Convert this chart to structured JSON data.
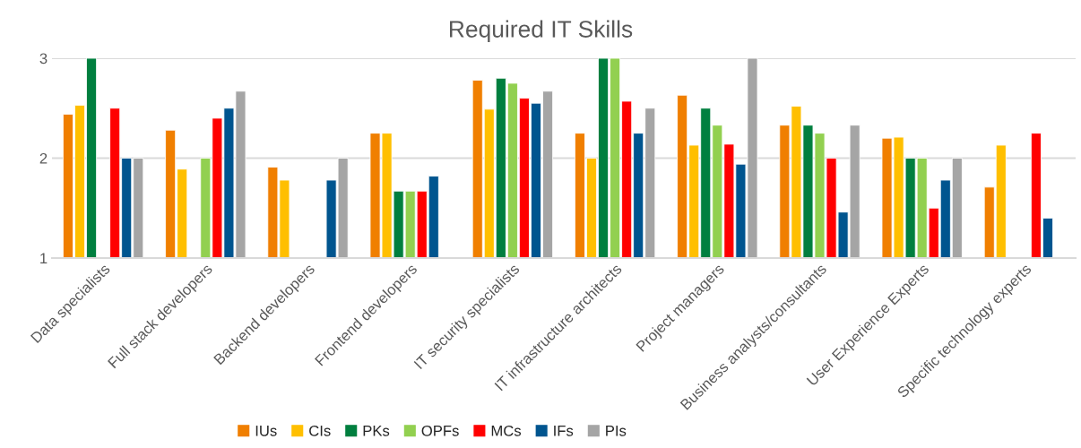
{
  "chart_data": {
    "type": "bar",
    "title": "Required IT Skills",
    "categories": [
      "Data specialists",
      "Full stack developers",
      "Backend developers",
      "Frontend developers",
      "IT security specialists",
      "IT infrastructure architects",
      "Project managers",
      "Business analysts/consultants",
      "User Experience Experts",
      "Specific technology experts"
    ],
    "series": [
      {
        "name": "IUs",
        "color": "#f07f00",
        "values": [
          2.44,
          2.28,
          1.91,
          2.25,
          2.78,
          2.25,
          2.63,
          2.33,
          2.2,
          1.71
        ]
      },
      {
        "name": "CIs",
        "color": "#ffbf00",
        "values": [
          2.53,
          1.89,
          1.78,
          2.25,
          2.49,
          2.0,
          2.13,
          2.52,
          2.21,
          2.13
        ]
      },
      {
        "name": "PKs",
        "color": "#007f3f",
        "values": [
          3,
          null,
          null,
          1.67,
          2.8,
          3,
          2.5,
          2.33,
          2.0,
          null
        ]
      },
      {
        "name": "OPFs",
        "color": "#92d050",
        "values": [
          null,
          2.0,
          null,
          1.67,
          2.75,
          3,
          2.33,
          2.25,
          2.0,
          null
        ]
      },
      {
        "name": "MCs",
        "color": "#ff0000",
        "values": [
          2.5,
          2.4,
          null,
          1.67,
          2.6,
          2.57,
          2.14,
          2.0,
          1.5,
          2.25
        ]
      },
      {
        "name": "IFs",
        "color": "#00558f",
        "values": [
          2.0,
          2.5,
          1.78,
          1.82,
          2.55,
          2.25,
          1.94,
          1.46,
          1.78,
          1.4
        ]
      },
      {
        "name": "PIs",
        "color": "#a5a5a5",
        "values": [
          2.0,
          2.67,
          2.0,
          null,
          2.67,
          2.5,
          3,
          2.33,
          2.0,
          null
        ]
      }
    ],
    "ylim": [
      1,
      3
    ],
    "yticks": [
      1,
      2,
      3
    ],
    "grid": "y",
    "legend": "bottom"
  }
}
